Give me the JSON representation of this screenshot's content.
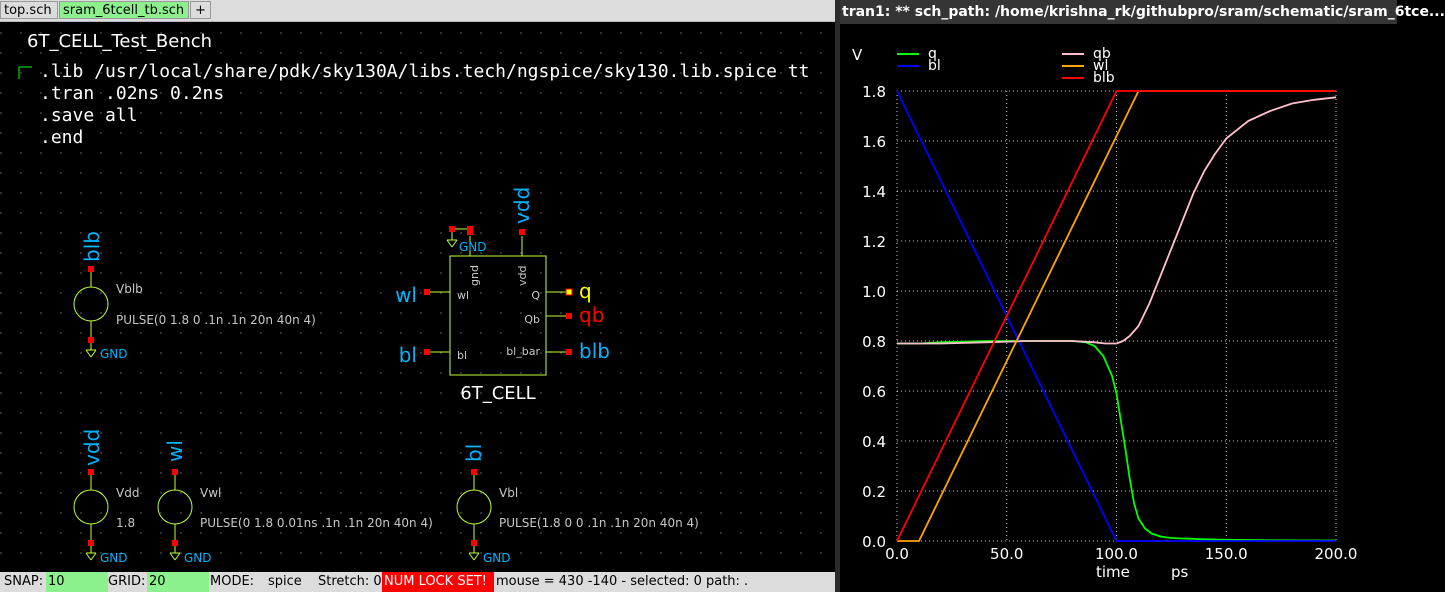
{
  "tabs": [
    {
      "label": "top.sch",
      "active": false
    },
    {
      "label": "sram_6tcell_tb.sch",
      "active": true
    },
    {
      "label": "+",
      "active": false
    }
  ],
  "schematic": {
    "title": "6T_CELL_Test_Bench",
    "spice_code": [
      ".lib /usr/local/share/pdk/sky130A/libs.tech/ngspice/sky130.lib.spice tt",
      ".tran .02ns 0.2ns",
      ".save all",
      ".end"
    ],
    "subcircuit": {
      "name": "6T_CELL",
      "pins": {
        "gnd": "gnd",
        "vdd": "vdd",
        "wl": "wl",
        "bl": "bl",
        "q": "Q",
        "qb": "Qb",
        "bl_bar": "bl_bar"
      },
      "labels": {
        "vdd": "vdd",
        "gnd": "GND",
        "wl": "wl",
        "bl": "bl",
        "q": "q",
        "qb": "qb",
        "blb": "blb"
      }
    },
    "sources": [
      {
        "id": "vblb",
        "net": "blb",
        "name": "Vblb",
        "value": "PULSE(0 1.8 0 .1n .1n 20n 40n 4)",
        "gnd": "GND"
      },
      {
        "id": "vdd",
        "net": "vdd",
        "name": "Vdd",
        "value": "1.8",
        "gnd": "GND"
      },
      {
        "id": "vwl",
        "net": "wl",
        "name": "Vwl",
        "value": "PULSE(0 1.8 0.01ns .1n .1n 20n 40n 4)",
        "gnd": "GND"
      },
      {
        "id": "vbl",
        "net": "bl",
        "name": "Vbl",
        "value": "PULSE(1.8 0 0 .1n .1n 20n 40n 4)",
        "gnd": "GND"
      }
    ]
  },
  "statusbar": {
    "snap_label": "SNAP:",
    "snap_value": "10",
    "grid_label": "GRID:",
    "grid_value": "20",
    "mode_label": "MODE:",
    "mode_value": "spice",
    "stretch": "Stretch: 0",
    "numlock": "NUM LOCK SET!",
    "mouse": "mouse = 430 -140 - selected: 0 path: ."
  },
  "waveform_window": {
    "title": "tran1: ** sch_path: /home/krishna_rk/githubpro/sram/schematic/sram_6tce..."
  },
  "chart_data": {
    "type": "line",
    "ylabel": "V",
    "xlabel": "time",
    "xunit": "ps",
    "xlim": [
      0,
      200
    ],
    "ylim": [
      0,
      1.8
    ],
    "xticks": [
      "0.0",
      "50.0",
      "100.0",
      "150.0",
      "200.0"
    ],
    "yticks": [
      "0.0",
      "0.2",
      "0.4",
      "0.6",
      "0.8",
      "1.0",
      "1.2",
      "1.4",
      "1.6",
      "1.8"
    ],
    "grid": true,
    "series": [
      {
        "name": "q",
        "color": "#00ff00",
        "x": [
          0,
          10,
          20,
          40,
          60,
          80,
          86,
          90,
          94,
          98,
          100,
          102,
          104,
          106,
          108,
          110,
          113,
          116,
          120,
          125,
          130,
          140,
          150,
          170,
          200
        ],
        "y": [
          0.79,
          0.79,
          0.795,
          0.8,
          0.8,
          0.8,
          0.795,
          0.78,
          0.74,
          0.66,
          0.59,
          0.48,
          0.37,
          0.25,
          0.15,
          0.09,
          0.05,
          0.03,
          0.018,
          0.012,
          0.01,
          0.007,
          0.005,
          0.003,
          0.002
        ]
      },
      {
        "name": "bl",
        "color": "#0000ff",
        "x": [
          0,
          100,
          200
        ],
        "y": [
          1.8,
          0.0,
          0.0
        ]
      },
      {
        "name": "qb",
        "color": "#ffc0cb",
        "x": [
          0,
          20,
          40,
          60,
          80,
          90,
          95,
          100,
          103,
          106,
          110,
          115,
          120,
          125,
          130,
          135,
          140,
          145,
          150,
          160,
          170,
          180,
          190,
          200
        ],
        "y": [
          0.79,
          0.79,
          0.795,
          0.8,
          0.8,
          0.795,
          0.79,
          0.79,
          0.8,
          0.82,
          0.86,
          0.95,
          1.06,
          1.17,
          1.28,
          1.39,
          1.48,
          1.55,
          1.61,
          1.68,
          1.72,
          1.75,
          1.765,
          1.775
        ]
      },
      {
        "name": "wl",
        "color": "#ffa500",
        "x": [
          0,
          10,
          110,
          200
        ],
        "y": [
          0.0,
          0.0,
          1.8,
          1.8
        ]
      },
      {
        "name": "blb",
        "color": "#ff0000",
        "x": [
          0,
          100,
          200
        ],
        "y": [
          0.0,
          1.8,
          1.8
        ]
      }
    ]
  }
}
